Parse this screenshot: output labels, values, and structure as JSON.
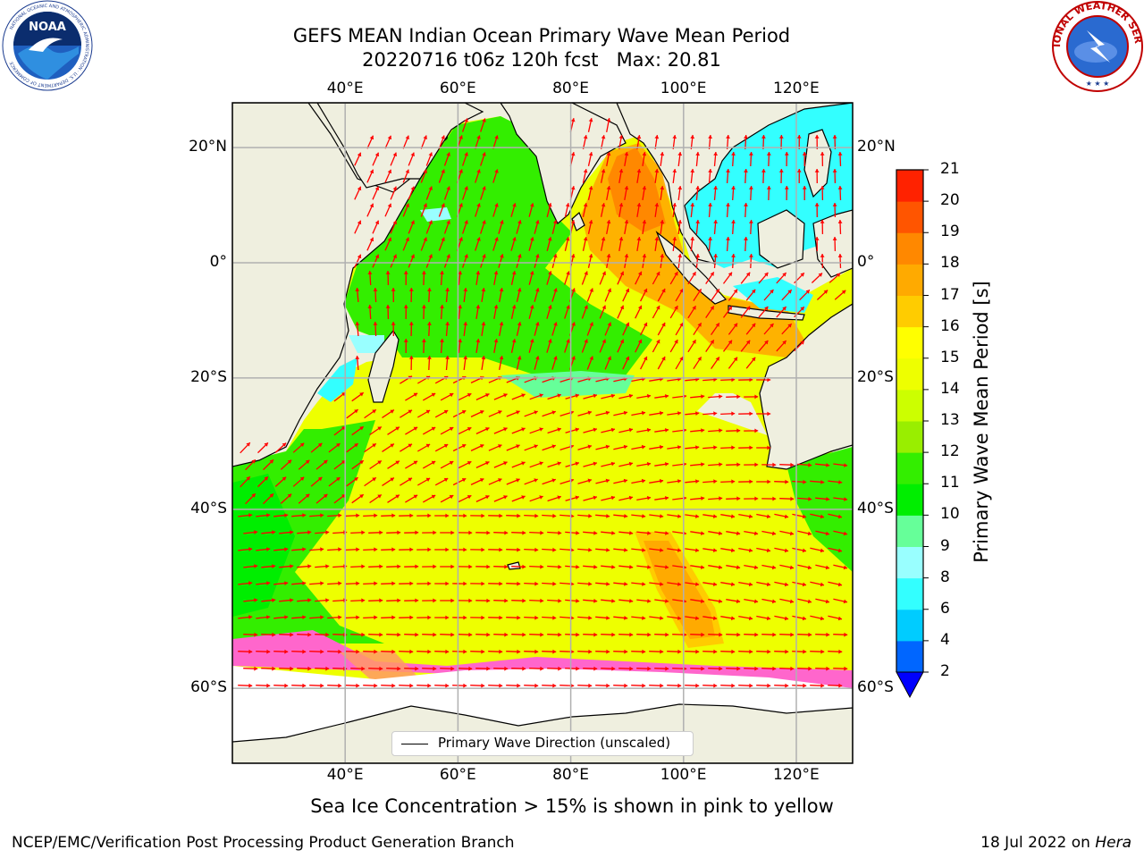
{
  "title": {
    "line1": "GEFS MEAN Indian Ocean Primary Wave Mean Period",
    "line2": "20220716 t06z 120h fcst   Max: 20.81"
  },
  "logos": {
    "left": {
      "name": "noaa-logo",
      "text": "NOAA",
      "ring_text": "NATIONAL OCEANIC AND ATMOSPHERIC ADMINISTRATION · U.S. DEPARTMENT OF COMMERCE"
    },
    "right": {
      "name": "nws-logo",
      "ring_text": "NATIONAL WEATHER SERVICE"
    }
  },
  "map": {
    "lon_range": [
      20,
      130
    ],
    "lat_range": [
      -70,
      28
    ],
    "lon_ticks": [
      "40°E",
      "60°E",
      "80°E",
      "100°E",
      "120°E"
    ],
    "lat_ticks": [
      "20°N",
      "0°",
      "20°S",
      "40°S",
      "60°S"
    ],
    "land_color": "#efefdf",
    "grid_color": "#b0b0b0",
    "vector_color": "#ff0000"
  },
  "colorbar": {
    "label": "Primary Wave Mean Period [s]",
    "ticks": [
      "2",
      "4",
      "6",
      "8",
      "9",
      "10",
      "11",
      "12",
      "13",
      "14",
      "15",
      "16",
      "17",
      "18",
      "19",
      "20",
      "21"
    ],
    "colors": [
      "#0066ff",
      "#00ccff",
      "#33ffff",
      "#99ffff",
      "#66ff99",
      "#00ee00",
      "#33ee00",
      "#99ee00",
      "#ccff00",
      "#eeff00",
      "#ffff00",
      "#ffcc00",
      "#ffaa00",
      "#ff8800",
      "#ff5500",
      "#ff2200"
    ],
    "extend_color": "#0000ff"
  },
  "legend": {
    "label": "Primary Wave Direction (unscaled)"
  },
  "note": "Sea Ice Concentration > 15% is shown in pink to yellow",
  "footer": {
    "credit": "NCEP/EMC/Verification Post Processing Product Generation Branch",
    "date": "18 Jul 2022 on ",
    "host": "Hera"
  }
}
